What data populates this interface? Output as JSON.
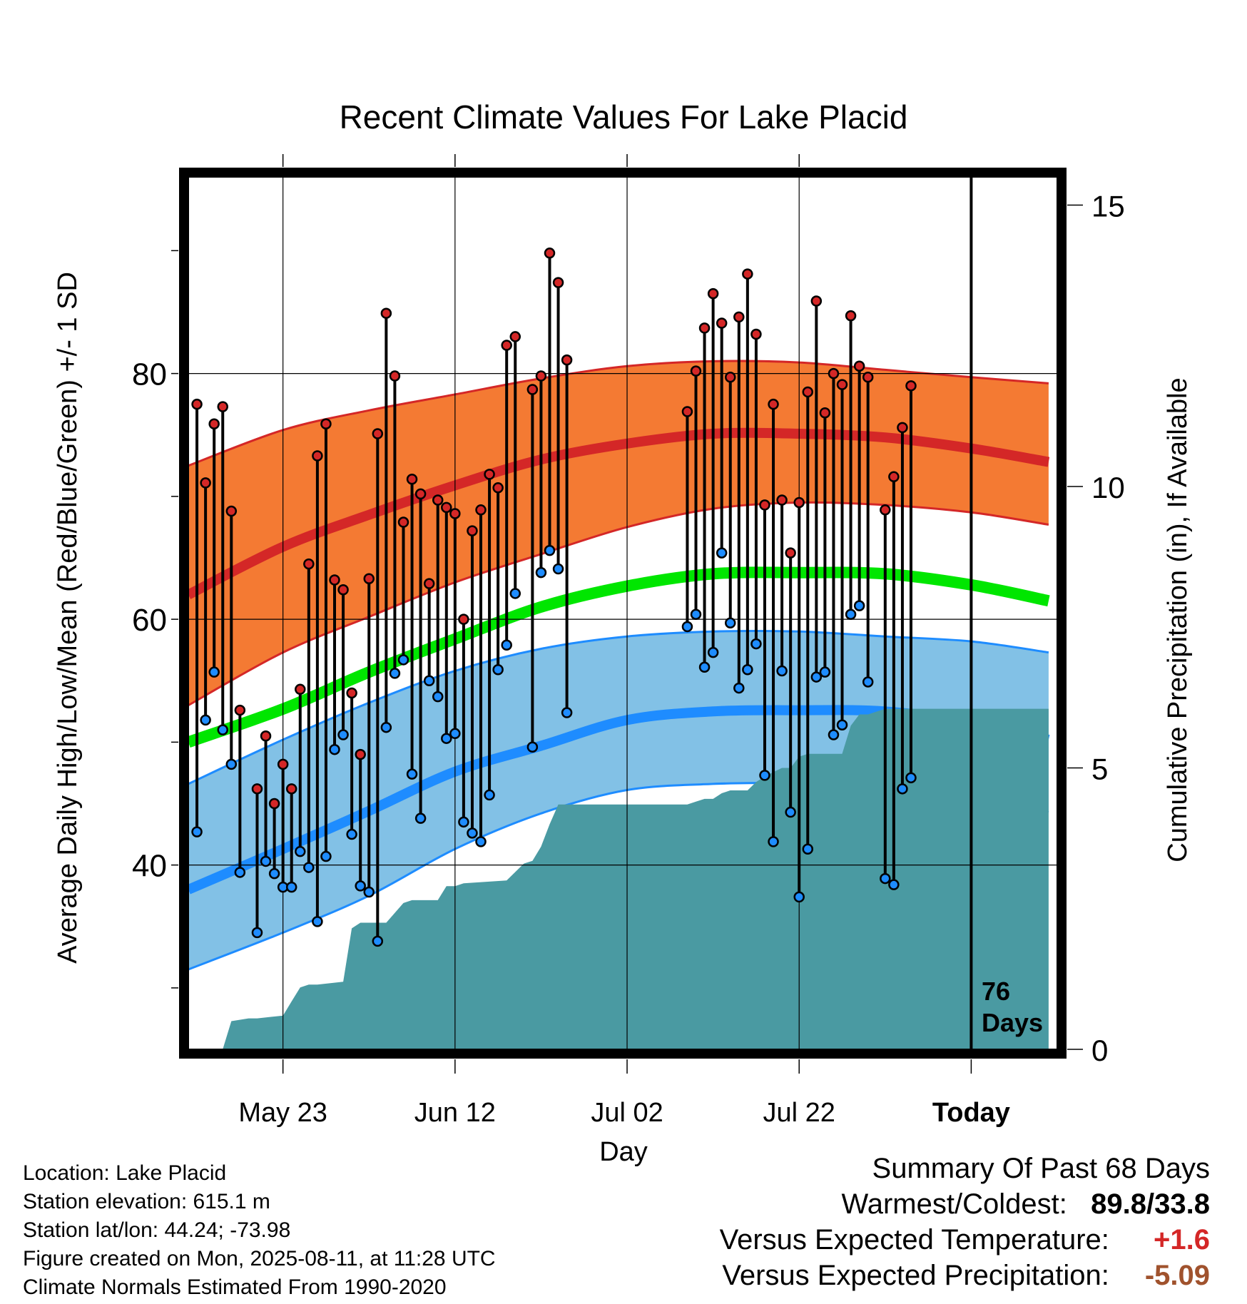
{
  "chart_data": {
    "type": "line",
    "title": "Recent Climate Values For Lake Placid",
    "xlabel": "Day",
    "ylabel": "Average Daily High/Low/Mean (Red/Blue/Green) +/- 1 SD",
    "y2label": "Cumulative Precipitation (in), If Available",
    "x_tick_labels": [
      "May 23",
      "Jun 12",
      "Jul 02",
      "Jul 22",
      "Today"
    ],
    "x_tick_days": [
      10,
      30,
      50,
      70,
      90
    ],
    "xlim_days": [
      -1,
      100
    ],
    "ylim": [
      25,
      96
    ],
    "y_ticks": [
      40,
      60,
      80
    ],
    "y2_ticks": [
      0,
      5,
      10,
      15
    ],
    "y2lim": [
      0,
      15.5
    ],
    "grid": true,
    "today_line_day": 90,
    "days_label": [
      "76",
      "Days"
    ],
    "colors": {
      "normal_high": "#d42727",
      "normal_high_band": "#f47a33",
      "normal_low": "#1e8cff",
      "normal_low_band": "#82c1e6",
      "normal_mean": "#00e600",
      "precipitation": "#4a9aa2",
      "high_points": "#d42727",
      "low_points": "#1e8cff"
    },
    "normal_curves": {
      "x_days": [
        -1,
        10,
        20,
        30,
        40,
        50,
        60,
        70,
        80,
        90,
        99
      ],
      "high": [
        62,
        65.9,
        68.5,
        70.9,
        73.0,
        74.3,
        75.1,
        75.1,
        74.8,
        73.9,
        72.8
      ],
      "high_plus_sd": [
        72.5,
        75.4,
        77.0,
        78.3,
        79.6,
        80.6,
        81.0,
        80.9,
        80.3,
        79.7,
        79.2
      ],
      "high_minus_sd": [
        53,
        57.3,
        60.2,
        63.0,
        65.3,
        67.5,
        69.0,
        69.5,
        69.3,
        68.7,
        67.7
      ],
      "low": [
        38,
        41.3,
        44.4,
        47.6,
        49.7,
        51.8,
        52.5,
        52.6,
        52.5,
        51.6,
        50.2
      ],
      "low_plus_sd": [
        46.6,
        50.2,
        53.2,
        55.8,
        57.6,
        58.6,
        59.0,
        59.0,
        58.6,
        58.2,
        57.3
      ],
      "low_minus_sd": [
        31.5,
        34.5,
        37.5,
        41.3,
        44.2,
        46.1,
        46.6,
        46.7,
        46.7,
        45.9,
        44.3
      ],
      "mean": [
        50,
        52.7,
        55.7,
        58.4,
        61.0,
        62.7,
        63.7,
        63.8,
        63.7,
        62.8,
        61.5
      ]
    },
    "observations": [
      {
        "day": 0,
        "high": 77.5,
        "low": 42.7
      },
      {
        "day": 1,
        "high": 71.1,
        "low": 51.8
      },
      {
        "day": 2,
        "high": 75.9,
        "low": 55.7
      },
      {
        "day": 3,
        "high": 77.3,
        "low": 51.0
      },
      {
        "day": 4,
        "high": 68.8,
        "low": 48.2
      },
      {
        "day": 5,
        "high": 52.6,
        "low": 39.4
      },
      {
        "day": 7,
        "high": 46.2,
        "low": 34.5
      },
      {
        "day": 8,
        "high": 50.5,
        "low": 40.3
      },
      {
        "day": 9,
        "high": 45.0,
        "low": 39.3
      },
      {
        "day": 10,
        "high": 48.2,
        "low": 38.2
      },
      {
        "day": 11,
        "high": 46.2,
        "low": 38.2
      },
      {
        "day": 12,
        "high": 54.3,
        "low": 41.1
      },
      {
        "day": 13,
        "high": 64.5,
        "low": 39.8
      },
      {
        "day": 14,
        "high": 73.3,
        "low": 35.4
      },
      {
        "day": 15,
        "high": 75.9,
        "low": 40.7
      },
      {
        "day": 16,
        "high": 63.2,
        "low": 49.4
      },
      {
        "day": 17,
        "high": 62.4,
        "low": 50.6
      },
      {
        "day": 18,
        "high": 54.0,
        "low": 42.5
      },
      {
        "day": 19,
        "high": 49.0,
        "low": 38.3
      },
      {
        "day": 20,
        "high": 63.3,
        "low": 37.8
      },
      {
        "day": 21,
        "high": 75.1,
        "low": 33.8
      },
      {
        "day": 22,
        "high": 84.9,
        "low": 51.2
      },
      {
        "day": 23,
        "high": 79.8,
        "low": 55.6
      },
      {
        "day": 24,
        "high": 67.9,
        "low": 56.7
      },
      {
        "day": 25,
        "high": 71.4,
        "low": 47.4
      },
      {
        "day": 26,
        "high": 70.2,
        "low": 43.8
      },
      {
        "day": 27,
        "high": 62.9,
        "low": 55.0
      },
      {
        "day": 28,
        "high": 69.7,
        "low": 53.7
      },
      {
        "day": 29,
        "high": 69.1,
        "low": 50.3
      },
      {
        "day": 30,
        "high": 68.6,
        "low": 50.7
      },
      {
        "day": 31,
        "high": 60.0,
        "low": 43.5
      },
      {
        "day": 32,
        "high": 67.2,
        "low": 42.6
      },
      {
        "day": 33,
        "high": 68.9,
        "low": 41.9
      },
      {
        "day": 34,
        "high": 71.8,
        "low": 45.7
      },
      {
        "day": 35,
        "high": 70.7,
        "low": 55.9
      },
      {
        "day": 36,
        "high": 82.3,
        "low": 57.9
      },
      {
        "day": 37,
        "high": 83.0,
        "low": 62.1
      },
      {
        "day": 39,
        "high": 78.7,
        "low": 49.6
      },
      {
        "day": 40,
        "high": 79.8,
        "low": 63.8
      },
      {
        "day": 41,
        "high": 89.8,
        "low": 65.6
      },
      {
        "day": 42,
        "high": 87.4,
        "low": 64.1
      },
      {
        "day": 43,
        "high": 81.1,
        "low": 52.4
      },
      {
        "day": 57,
        "high": 76.9,
        "low": 59.4
      },
      {
        "day": 58,
        "high": 80.2,
        "low": 60.4
      },
      {
        "day": 59,
        "high": 83.7,
        "low": 56.1
      },
      {
        "day": 60,
        "high": 86.5,
        "low": 57.3
      },
      {
        "day": 61,
        "high": 84.1,
        "low": 65.4
      },
      {
        "day": 62,
        "high": 79.7,
        "low": 59.7
      },
      {
        "day": 63,
        "high": 84.6,
        "low": 54.4
      },
      {
        "day": 64,
        "high": 88.1,
        "low": 55.9
      },
      {
        "day": 65,
        "high": 83.2,
        "low": 58.0
      },
      {
        "day": 66,
        "high": 69.3,
        "low": 47.3
      },
      {
        "day": 67,
        "high": 77.5,
        "low": 41.9
      },
      {
        "day": 68,
        "high": 69.7,
        "low": 55.8
      },
      {
        "day": 69,
        "high": 65.4,
        "low": 44.3
      },
      {
        "day": 70,
        "high": 69.5,
        "low": 37.4
      },
      {
        "day": 71,
        "high": 78.5,
        "low": 41.3
      },
      {
        "day": 72,
        "high": 85.9,
        "low": 55.3
      },
      {
        "day": 73,
        "high": 76.8,
        "low": 55.7
      },
      {
        "day": 74,
        "high": 80.0,
        "low": 50.6
      },
      {
        "day": 75,
        "high": 79.1,
        "low": 51.4
      },
      {
        "day": 76,
        "high": 84.7,
        "low": 60.4
      },
      {
        "day": 77,
        "high": 80.6,
        "low": 61.1
      },
      {
        "day": 78,
        "high": 79.7,
        "low": 54.9
      },
      {
        "day": 80,
        "high": 68.9,
        "low": 38.9
      },
      {
        "day": 81,
        "high": 71.6,
        "low": 38.4
      },
      {
        "day": 82,
        "high": 75.6,
        "low": 46.2
      },
      {
        "day": 83,
        "high": 79.0,
        "low": 47.1
      }
    ],
    "precipitation": {
      "x_days": [
        3,
        4,
        6,
        7,
        10,
        11,
        12,
        13,
        14,
        17,
        18,
        19,
        22,
        24,
        25,
        28,
        29,
        30,
        31,
        36,
        38,
        39,
        40,
        41,
        42,
        57,
        58,
        59,
        60,
        61,
        62,
        64,
        65,
        66,
        68,
        69,
        70,
        71,
        72,
        73,
        74,
        75,
        76,
        77,
        78,
        80,
        99
      ],
      "values": [
        0,
        0.5,
        0.55,
        0.55,
        0.6,
        0.85,
        1.1,
        1.15,
        1.15,
        1.2,
        2.15,
        2.25,
        2.25,
        2.6,
        2.65,
        2.65,
        2.9,
        2.9,
        2.95,
        3.0,
        3.3,
        3.35,
        3.6,
        4.0,
        4.35,
        4.35,
        4.4,
        4.45,
        4.45,
        4.55,
        4.6,
        4.6,
        4.75,
        4.85,
        5.0,
        5.0,
        5.2,
        5.25,
        5.25,
        5.25,
        5.25,
        5.25,
        5.75,
        5.95,
        5.95,
        6.05,
        6.05
      ]
    }
  },
  "info": {
    "location": "Location: Lake Placid",
    "elevation": "Station elevation: 615.1 m",
    "latlon": "Station lat/lon: 44.24; -73.98",
    "created": "Figure created on Mon, 2025-08-11, at 11:28 UTC",
    "normals": "Climate Normals Estimated From 1990-2020"
  },
  "summary": {
    "heading": "Summary Of Past 68 Days",
    "warmest_coldest_label": "Warmest/Coldest:",
    "warmest": "89.8",
    "separator": "/",
    "coldest": "33.8",
    "temp_label": "Versus Expected Temperature:",
    "temp_value": "+1.6",
    "temp_color": "#d42727",
    "precip_label": "Versus Expected Precipitation:",
    "precip_value": "-5.09",
    "precip_color": "#a0522d"
  }
}
